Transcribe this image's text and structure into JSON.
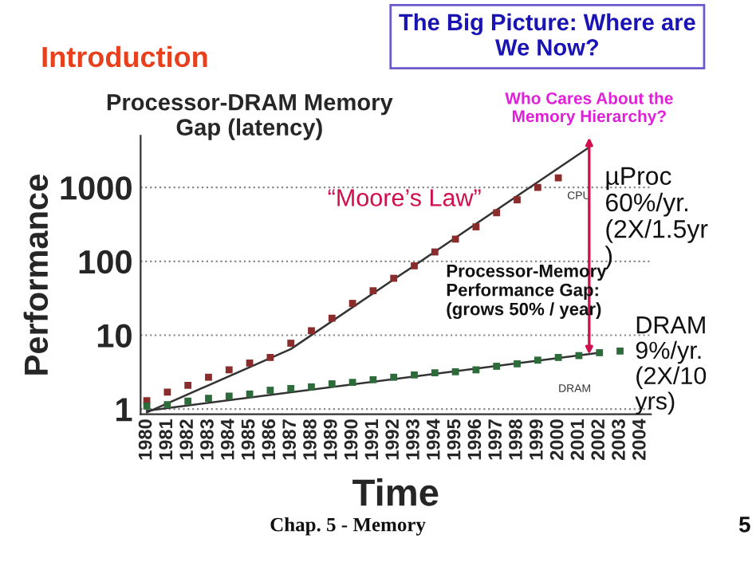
{
  "chart_data": {
    "type": "scatter",
    "title": "Processor-DRAM Memory\nGap (latency)",
    "xlabel": "Time",
    "ylabel": "Performance",
    "series": [
      {
        "name": "CPU",
        "color": "#8b2c2c",
        "x": [
          1980,
          1981,
          1982,
          1983,
          1984,
          1985,
          1986,
          1987,
          1988,
          1989,
          1990,
          1991,
          1992,
          1993,
          1994,
          1995,
          1996,
          1997,
          1998,
          1999,
          2000
        ],
        "values": [
          1.3,
          1.7,
          2.1,
          2.7,
          3.4,
          4.2,
          5.0,
          7.8,
          11.5,
          17,
          27,
          40,
          59,
          87,
          134,
          200,
          293,
          455,
          680,
          1000,
          1350
        ]
      },
      {
        "name": "DRAM",
        "color": "#2e6b3a",
        "x": [
          1980,
          1981,
          1982,
          1983,
          1984,
          1985,
          1986,
          1987,
          1988,
          1989,
          1990,
          1991,
          1992,
          1993,
          1994,
          1995,
          1996,
          1997,
          1998,
          1999,
          2000,
          2001,
          2002,
          2003
        ],
        "values": [
          1.1,
          1.15,
          1.28,
          1.4,
          1.5,
          1.6,
          1.8,
          1.9,
          2.0,
          2.2,
          2.3,
          2.5,
          2.7,
          2.9,
          3.1,
          3.2,
          3.4,
          3.8,
          4.1,
          4.6,
          5.0,
          5.3,
          5.8,
          6.1
        ]
      },
      {
        "type": "line",
        "marker": "none",
        "color": "#333333",
        "x": [
          1980,
          1987,
          2001.5
        ],
        "values": [
          0.9,
          6.5,
          3500
        ]
      },
      {
        "type": "line",
        "marker": "none",
        "color": "#333333",
        "x": [
          1980,
          2002
        ],
        "values": [
          0.95,
          5.8
        ]
      }
    ],
    "xlim": [
      1979.7,
      2004.5
    ],
    "ylim": [
      0.85,
      5000
    ],
    "log": true,
    "xticks": [
      1980,
      1981,
      1982,
      1983,
      1984,
      1985,
      1986,
      1987,
      1988,
      1989,
      1990,
      1991,
      1992,
      1993,
      1994,
      1995,
      1996,
      1997,
      1998,
      1999,
      2000,
      2001,
      2002,
      2003,
      2004
    ],
    "yticks": [
      1,
      10,
      100,
      1000
    ],
    "grid": "y",
    "marker": "square",
    "annotations": [
      "Introduction",
      "The Big Picture: Where are\nWe Now?",
      {
        "text": "Who Cares About the\nMemory Hierarchy?",
        "x": 2001.5,
        "y": 5.5
      },
      "“Moore’s Law”",
      "Processor-Memory\nPerformance Gap:\n(grows 50% / year)",
      "µProc\n60%/yr.\n(2X/1.5yr\n)",
      "DRAM\n9%/yr.\n(2X/10\nyrs)",
      "Chap. 5 - Memory",
      "5"
    ]
  }
}
